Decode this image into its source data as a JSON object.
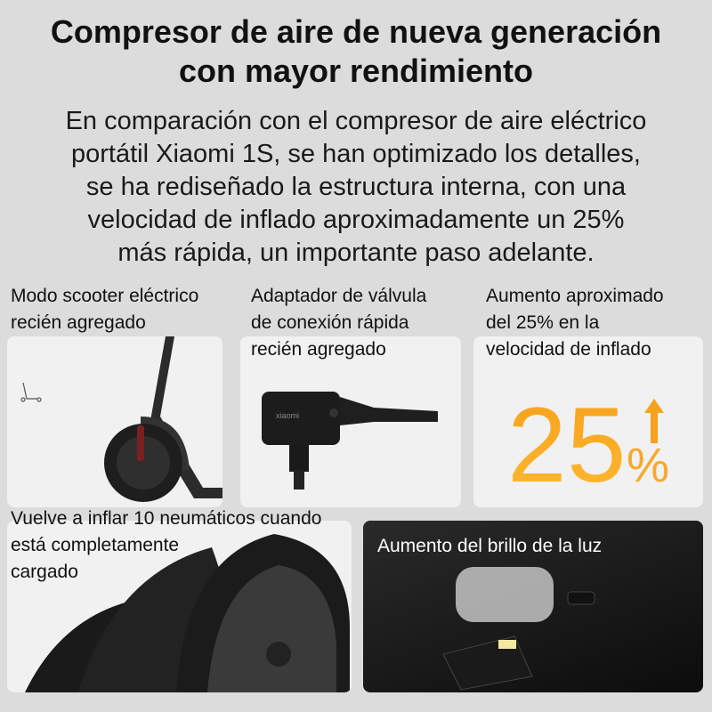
{
  "title": [
    "Compresor de aire de nueva generación",
    "con mayor rendimiento"
  ],
  "description": [
    "En comparación con el compresor de aire eléctrico",
    "portátil Xiaomi 1S, se han optimizado los detalles,",
    "se ha rediseñado la estructura interna, con una",
    "velocidad de inflado aproximadamente un 25%",
    "más rápida, un importante paso adelante."
  ],
  "features": {
    "scooter": [
      "Modo scooter eléctrico",
      "recién agregado"
    ],
    "adapter": [
      "Adaptador de válvula",
      "de conexión rápida",
      "recién agregado"
    ],
    "speed": [
      "Aumento aproximado",
      "del 25% en la",
      "velocidad de inflado"
    ],
    "speed_value": "25",
    "speed_unit": "%",
    "tires": [
      "Vuelve a inflar 10 neumáticos cuando",
      "está completamente",
      "cargado"
    ],
    "light": "Aumento del brillo de la luz"
  },
  "adapter_brand": "xiaomi",
  "colors": {
    "accent": "#f7a21a",
    "background": "#dcdcdc"
  }
}
